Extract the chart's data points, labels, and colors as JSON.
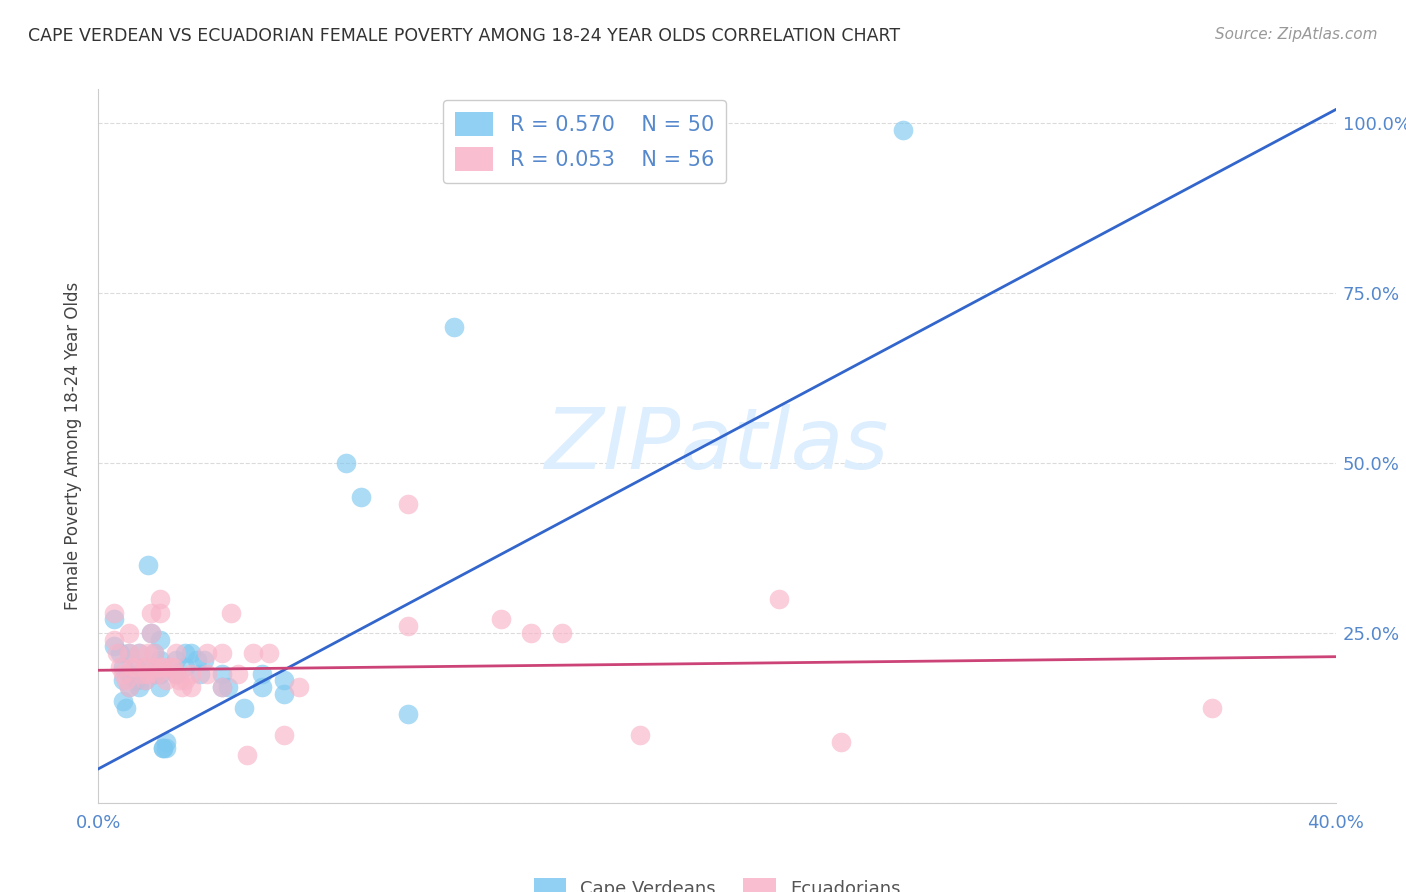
{
  "title": "CAPE VERDEAN VS ECUADORIAN FEMALE POVERTY AMONG 18-24 YEAR OLDS CORRELATION CHART",
  "source": "Source: ZipAtlas.com",
  "ylabel": "Female Poverty Among 18-24 Year Olds",
  "xlim": [
    0.0,
    0.4
  ],
  "ylim": [
    0.0,
    1.05
  ],
  "xticks": [
    0.0,
    0.1,
    0.2,
    0.3,
    0.4
  ],
  "xticklabels": [
    "0.0%",
    "",
    "",
    "",
    "40.0%"
  ],
  "yticks": [
    0.0,
    0.25,
    0.5,
    0.75,
    1.0
  ],
  "yticklabels": [
    "",
    "25.0%",
    "50.0%",
    "75.0%",
    "100.0%"
  ],
  "legend_r1": "R = 0.570",
  "legend_n1": "N = 50",
  "legend_r2": "R = 0.053",
  "legend_n2": "N = 56",
  "blue_color": "#7ec8f0",
  "pink_color": "#f8b4c8",
  "blue_line_color": "#3366cc",
  "pink_line_color": "#cc4477",
  "watermark_color": "#ddeeff",
  "grid_color": "#cccccc",
  "tick_color": "#5588cc",
  "title_color": "#333333",
  "source_color": "#999999",
  "blue_scatter": [
    [
      0.005,
      0.27
    ],
    [
      0.005,
      0.23
    ],
    [
      0.007,
      0.22
    ],
    [
      0.008,
      0.2
    ],
    [
      0.008,
      0.18
    ],
    [
      0.008,
      0.15
    ],
    [
      0.009,
      0.14
    ],
    [
      0.01,
      0.17
    ],
    [
      0.01,
      0.19
    ],
    [
      0.01,
      0.22
    ],
    [
      0.012,
      0.18
    ],
    [
      0.012,
      0.2
    ],
    [
      0.013,
      0.22
    ],
    [
      0.013,
      0.17
    ],
    [
      0.015,
      0.18
    ],
    [
      0.015,
      0.2
    ],
    [
      0.016,
      0.35
    ],
    [
      0.017,
      0.25
    ],
    [
      0.018,
      0.22
    ],
    [
      0.018,
      0.19
    ],
    [
      0.02,
      0.24
    ],
    [
      0.02,
      0.21
    ],
    [
      0.02,
      0.19
    ],
    [
      0.02,
      0.17
    ],
    [
      0.021,
      0.08
    ],
    [
      0.021,
      0.08
    ],
    [
      0.022,
      0.08
    ],
    [
      0.022,
      0.09
    ],
    [
      0.025,
      0.21
    ],
    [
      0.025,
      0.19
    ],
    [
      0.028,
      0.22
    ],
    [
      0.028,
      0.2
    ],
    [
      0.03,
      0.22
    ],
    [
      0.032,
      0.21
    ],
    [
      0.033,
      0.19
    ],
    [
      0.034,
      0.21
    ],
    [
      0.04,
      0.17
    ],
    [
      0.04,
      0.19
    ],
    [
      0.042,
      0.17
    ],
    [
      0.047,
      0.14
    ],
    [
      0.053,
      0.17
    ],
    [
      0.053,
      0.19
    ],
    [
      0.06,
      0.16
    ],
    [
      0.06,
      0.18
    ],
    [
      0.08,
      0.5
    ],
    [
      0.085,
      0.45
    ],
    [
      0.1,
      0.13
    ],
    [
      0.115,
      0.7
    ],
    [
      0.19,
      0.99
    ],
    [
      0.26,
      0.99
    ]
  ],
  "pink_scatter": [
    [
      0.005,
      0.28
    ],
    [
      0.005,
      0.24
    ],
    [
      0.006,
      0.22
    ],
    [
      0.007,
      0.2
    ],
    [
      0.008,
      0.19
    ],
    [
      0.009,
      0.18
    ],
    [
      0.01,
      0.17
    ],
    [
      0.01,
      0.22
    ],
    [
      0.01,
      0.25
    ],
    [
      0.011,
      0.2
    ],
    [
      0.012,
      0.2
    ],
    [
      0.013,
      0.22
    ],
    [
      0.014,
      0.19
    ],
    [
      0.015,
      0.2
    ],
    [
      0.015,
      0.18
    ],
    [
      0.016,
      0.22
    ],
    [
      0.016,
      0.19
    ],
    [
      0.017,
      0.28
    ],
    [
      0.017,
      0.25
    ],
    [
      0.018,
      0.22
    ],
    [
      0.018,
      0.2
    ],
    [
      0.019,
      0.19
    ],
    [
      0.02,
      0.3
    ],
    [
      0.02,
      0.28
    ],
    [
      0.02,
      0.2
    ],
    [
      0.021,
      0.2
    ],
    [
      0.022,
      0.18
    ],
    [
      0.023,
      0.2
    ],
    [
      0.024,
      0.2
    ],
    [
      0.025,
      0.22
    ],
    [
      0.025,
      0.19
    ],
    [
      0.026,
      0.18
    ],
    [
      0.027,
      0.17
    ],
    [
      0.028,
      0.18
    ],
    [
      0.03,
      0.19
    ],
    [
      0.03,
      0.17
    ],
    [
      0.035,
      0.22
    ],
    [
      0.035,
      0.19
    ],
    [
      0.04,
      0.17
    ],
    [
      0.04,
      0.22
    ],
    [
      0.043,
      0.28
    ],
    [
      0.045,
      0.19
    ],
    [
      0.048,
      0.07
    ],
    [
      0.05,
      0.22
    ],
    [
      0.055,
      0.22
    ],
    [
      0.06,
      0.1
    ],
    [
      0.065,
      0.17
    ],
    [
      0.1,
      0.44
    ],
    [
      0.1,
      0.26
    ],
    [
      0.13,
      0.27
    ],
    [
      0.14,
      0.25
    ],
    [
      0.15,
      0.25
    ],
    [
      0.175,
      0.1
    ],
    [
      0.22,
      0.3
    ],
    [
      0.24,
      0.09
    ],
    [
      0.36,
      0.14
    ]
  ],
  "blue_line": [
    [
      0.0,
      0.05
    ],
    [
      0.4,
      1.02
    ]
  ],
  "pink_line": [
    [
      0.0,
      0.195
    ],
    [
      0.4,
      0.215
    ]
  ]
}
